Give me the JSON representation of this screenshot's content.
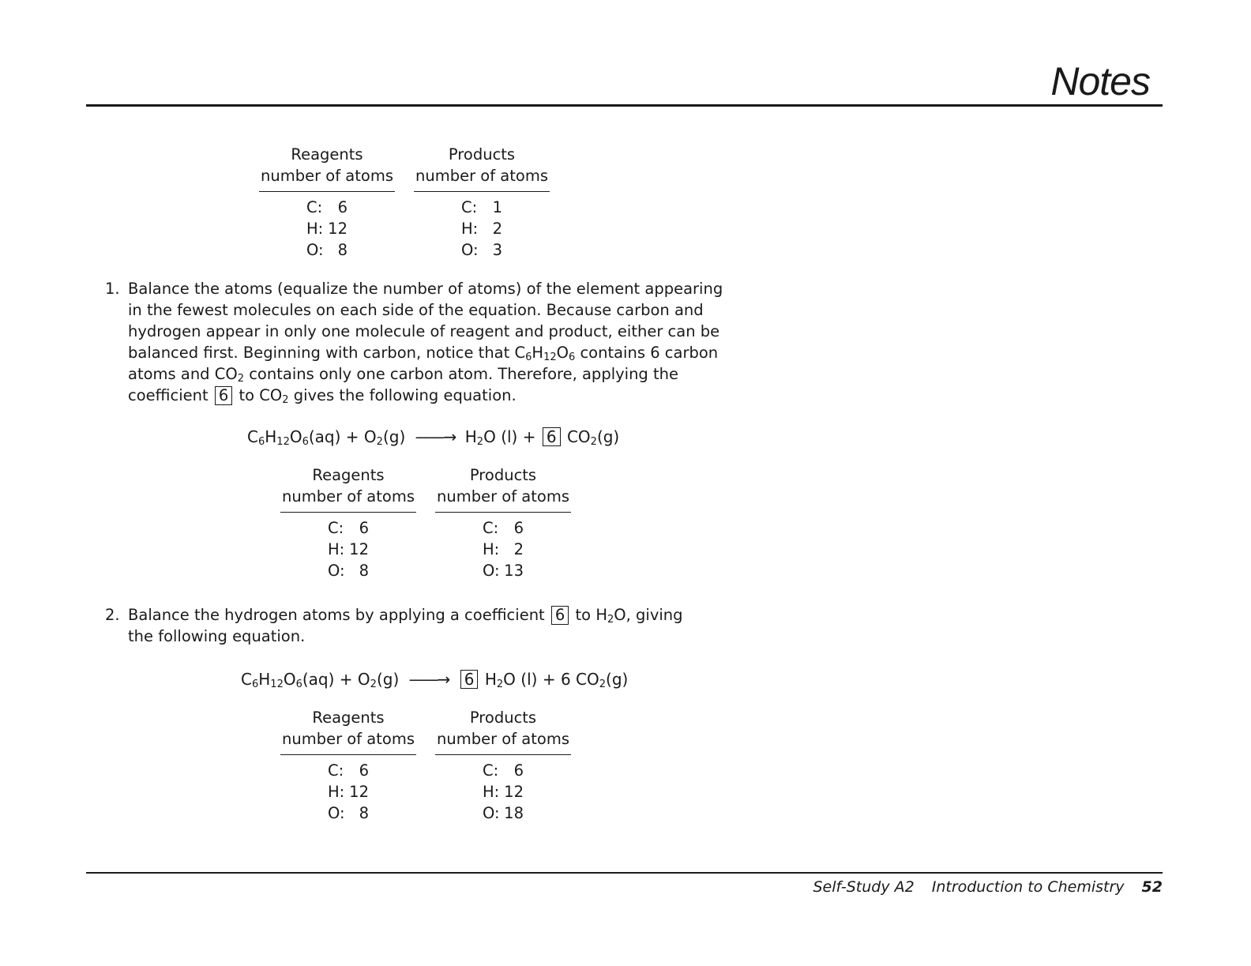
{
  "header": {
    "title": "Notes"
  },
  "tables": [
    {
      "reagents_heading": [
        "Reagents",
        "number of atoms"
      ],
      "products_heading": [
        "Products",
        "number of atoms"
      ],
      "reagents": [
        [
          "C:",
          "6"
        ],
        [
          "H:",
          "12"
        ],
        [
          "O:",
          "8"
        ]
      ],
      "products": [
        [
          "C:",
          "1"
        ],
        [
          "H:",
          "2"
        ],
        [
          "O:",
          "3"
        ]
      ]
    },
    {
      "reagents_heading": [
        "Reagents",
        "number of atoms"
      ],
      "products_heading": [
        "Products",
        "number of atoms"
      ],
      "reagents": [
        [
          "C:",
          "6"
        ],
        [
          "H:",
          "12"
        ],
        [
          "O:",
          "8"
        ]
      ],
      "products": [
        [
          "C:",
          "6"
        ],
        [
          "H:",
          "2"
        ],
        [
          "O:",
          "13"
        ]
      ]
    },
    {
      "reagents_heading": [
        "Reagents",
        "number of atoms"
      ],
      "products_heading": [
        "Products",
        "number of atoms"
      ],
      "reagents": [
        [
          "C:",
          "6"
        ],
        [
          "H:",
          "12"
        ],
        [
          "O:",
          "8"
        ]
      ],
      "products": [
        [
          "C:",
          "6"
        ],
        [
          "H:",
          "12"
        ],
        [
          "O:",
          "18"
        ]
      ]
    }
  ],
  "steps": [
    {
      "marker": "1.",
      "text_1": "Balance the atoms (equalize the number of atoms) of the element appearing in the fewest molecules on each side of the equation. Because carbon and hydrogen appear in only one molecule of reagent and product, either can be balanced first. Beginning with carbon, notice that ",
      "text_2": " contains 6 carbon atoms and ",
      "text_3": " contains only one carbon atom. Therefore, applying the coefficient ",
      "coefficient": "6",
      "text_4": " to ",
      "text_5": " gives the following equation."
    },
    {
      "marker": "2.",
      "text_1": "Balance the hydrogen atoms by applying a coefficient ",
      "coefficient": "6",
      "text_2": " to ",
      "text_3": ", giving the following equation."
    }
  ],
  "chem": {
    "c": "C",
    "h": "H",
    "o": "O",
    "co": "CO",
    "six": "6",
    "twelve": "12",
    "two": "2",
    "aq": "(aq)",
    "g": "(g)",
    "l": "(l)",
    "plus": "+",
    "arrow": "——→"
  },
  "equations": [
    {
      "coefficient": "6"
    },
    {
      "coefficient": "6",
      "co2_coefficient": "6"
    }
  ],
  "footer": {
    "course": "Self-Study A2",
    "chapter": "Introduction to Chemistry",
    "page": "52"
  }
}
